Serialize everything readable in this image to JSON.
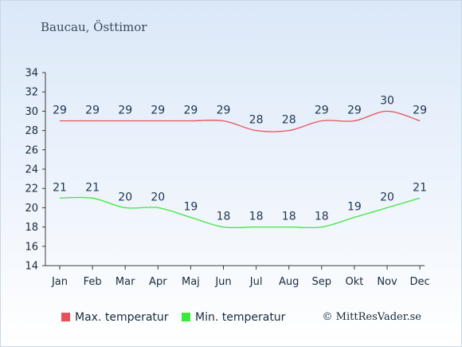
{
  "title": "Baucau, Östtimor",
  "chart_data": {
    "type": "line",
    "categories": [
      "Jan",
      "Feb",
      "Mar",
      "Apr",
      "Maj",
      "Jun",
      "Jul",
      "Aug",
      "Sep",
      "Okt",
      "Nov",
      "Dec"
    ],
    "ylim": [
      14,
      34
    ],
    "yticks": [
      14,
      16,
      18,
      20,
      22,
      24,
      26,
      28,
      30,
      32,
      34
    ],
    "grid": false,
    "legend_position": "bottom",
    "series": [
      {
        "name": "Max. temperatur",
        "color": "#e8505a",
        "values": [
          29,
          29,
          29,
          29,
          29,
          29,
          28,
          28,
          29,
          29,
          30,
          29
        ]
      },
      {
        "name": "Min. temperatur",
        "color": "#3ce83c",
        "values": [
          21,
          21,
          20,
          20,
          19,
          18,
          18,
          18,
          18,
          19,
          20,
          21
        ]
      }
    ]
  },
  "credit": "© MittResVader.se"
}
